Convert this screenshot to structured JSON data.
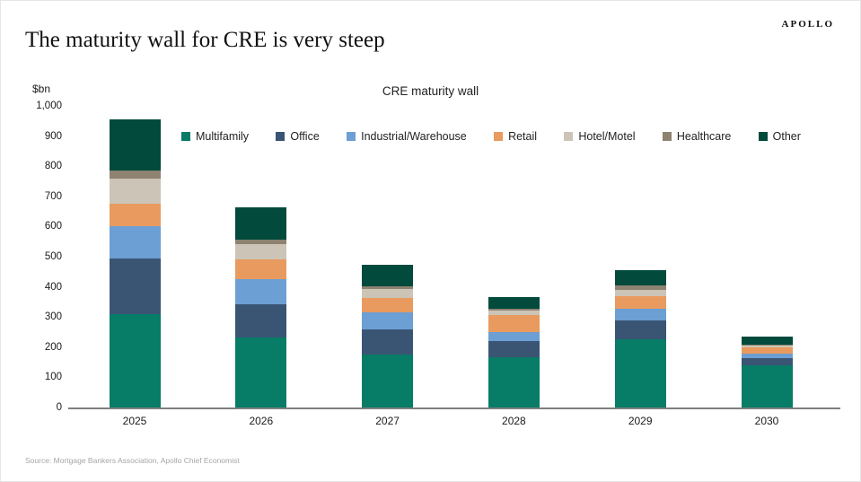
{
  "page": {
    "logo": "APOLLO",
    "title": "The maturity wall for CRE is very steep",
    "source": "Source: Mortgage Bankers Association, Apollo Chief Economist"
  },
  "chart_data": {
    "type": "bar",
    "stacked": true,
    "title": "CRE maturity wall",
    "unit_label": "$bn",
    "categories": [
      "2025",
      "2026",
      "2027",
      "2028",
      "2029",
      "2030"
    ],
    "series": [
      {
        "name": "Multifamily",
        "color": "#077c66",
        "values": [
          310,
          233,
          176,
          167,
          227,
          140
        ]
      },
      {
        "name": "Office",
        "color": "#3a5574",
        "values": [
          185,
          108,
          84,
          52,
          62,
          23
        ]
      },
      {
        "name": "Industrial/Warehouse",
        "color": "#6c9fd3",
        "values": [
          105,
          86,
          57,
          32,
          37,
          16
        ]
      },
      {
        "name": "Retail",
        "color": "#e99a5e",
        "values": [
          77,
          63,
          46,
          55,
          43,
          20
        ]
      },
      {
        "name": "Hotel/Motel",
        "color": "#ccc4b6",
        "values": [
          83,
          53,
          30,
          16,
          20,
          7
        ]
      },
      {
        "name": "Healthcare",
        "color": "#8e8271",
        "values": [
          25,
          13,
          8,
          4,
          15,
          3
        ]
      },
      {
        "name": "Other",
        "color": "#014a3c",
        "values": [
          172,
          107,
          72,
          40,
          53,
          26
        ]
      }
    ],
    "totals": [
      957,
      663,
      473,
      366,
      457,
      235
    ],
    "ylim": [
      0,
      1000
    ],
    "ytick_step": 100,
    "ytick_labels": [
      "0",
      "100",
      "200",
      "300",
      "400",
      "500",
      "600",
      "700",
      "800",
      "900",
      "1,000"
    ],
    "grid": false,
    "legend_position": "top"
  }
}
